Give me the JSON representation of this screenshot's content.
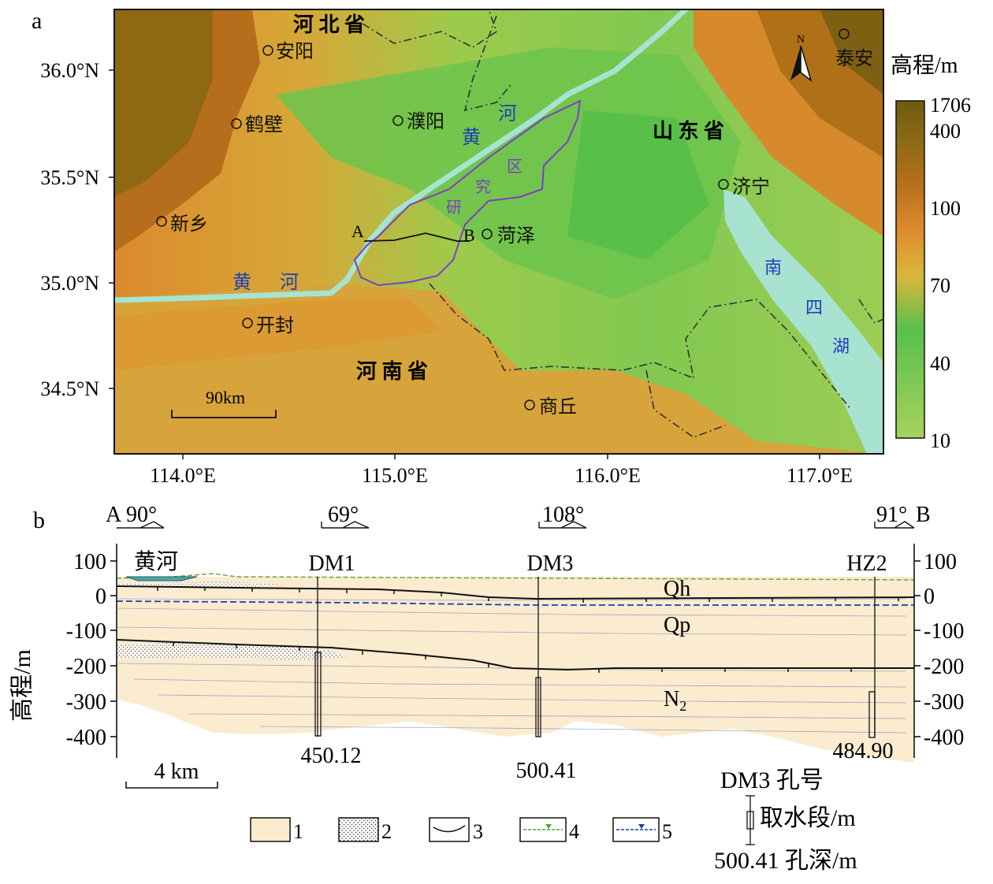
{
  "panel_a": {
    "label": "a",
    "lat_ticks": [
      "36.0°N",
      "35.5°N",
      "35.0°N",
      "34.5°N"
    ],
    "lon_ticks": [
      "114.0°E",
      "115.0°E",
      "116.0°E",
      "117.0°E"
    ],
    "provinces": {
      "hebei": "河 北 省",
      "shandong": "山 东 省",
      "henan": "河 南 省"
    },
    "cities": {
      "anyang": "安阳",
      "hebi": "鹤壁",
      "puyang": "濮阳",
      "xinxiang": "新乡",
      "heze": "菏泽",
      "jining": "济宁",
      "kaifeng": "开封",
      "shangqiu": "商丘",
      "taian": "泰安"
    },
    "river_labels": {
      "huang_left": "黄",
      "he_left": "河",
      "huang_right": "黄",
      "he_right": "河"
    },
    "study_area": {
      "c1": "研",
      "c2": "究",
      "c3": "区"
    },
    "lake": {
      "c1": "南",
      "c2": "四",
      "c3": "湖"
    },
    "profile_end_a": "A",
    "profile_end_b": "B",
    "north_arrow": "N",
    "scale": "90km",
    "legend": {
      "title": "高程/m",
      "levels": [
        "1706",
        "400",
        "100",
        "70",
        "40",
        "10"
      ],
      "colors": [
        "#6e5a10",
        "#a8761a",
        "#d98a2a",
        "#d4b43a",
        "#5cc24a",
        "#a4d05a"
      ]
    }
  },
  "panel_b": {
    "label": "b",
    "left_end": "A",
    "right_end": "B",
    "dips": [
      "90°",
      "69°",
      "108°",
      "91°"
    ],
    "yellow_river": "黄河",
    "boreholes": [
      {
        "id": "DM1",
        "depth": "450.12"
      },
      {
        "id": "DM3",
        "depth": "500.41"
      },
      {
        "id": "HZ2",
        "depth": "484.90"
      }
    ],
    "strata": {
      "qh": "Qh",
      "qp": "Qp",
      "n2": "N",
      "n2_sub": "2"
    },
    "y_ticks": [
      "100",
      "0",
      "-100",
      "-200",
      "-300",
      "-400"
    ],
    "ylabel": "高程/m",
    "scale": "4 km",
    "legend": [
      "1",
      "2",
      "3",
      "4",
      "5"
    ],
    "key": {
      "well_id": "DM3 孔号",
      "intake": "取水段/m",
      "depth": "500.41 孔深/m"
    }
  }
}
